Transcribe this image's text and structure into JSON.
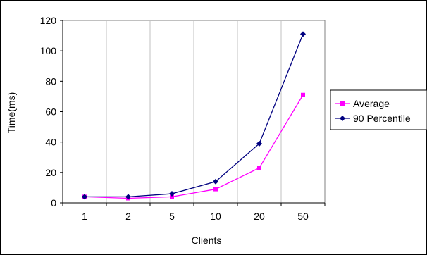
{
  "chart_data": {
    "type": "line",
    "title": "",
    "xlabel": "Clients",
    "ylabel": "Time(ms)",
    "categories": [
      "1",
      "2",
      "5",
      "10",
      "20",
      "50"
    ],
    "ylim": [
      0,
      120
    ],
    "yticks": [
      0,
      20,
      40,
      60,
      80,
      100,
      120
    ],
    "grid": "vertical",
    "legend_position": "right",
    "series": [
      {
        "name": "Average",
        "values": [
          4,
          3,
          4,
          9,
          23,
          71
        ],
        "color": "#ff00ff",
        "marker": "square"
      },
      {
        "name": "90 Percentile",
        "values": [
          4,
          4,
          6,
          14,
          39,
          111
        ],
        "color": "#000080",
        "marker": "diamond"
      }
    ]
  }
}
